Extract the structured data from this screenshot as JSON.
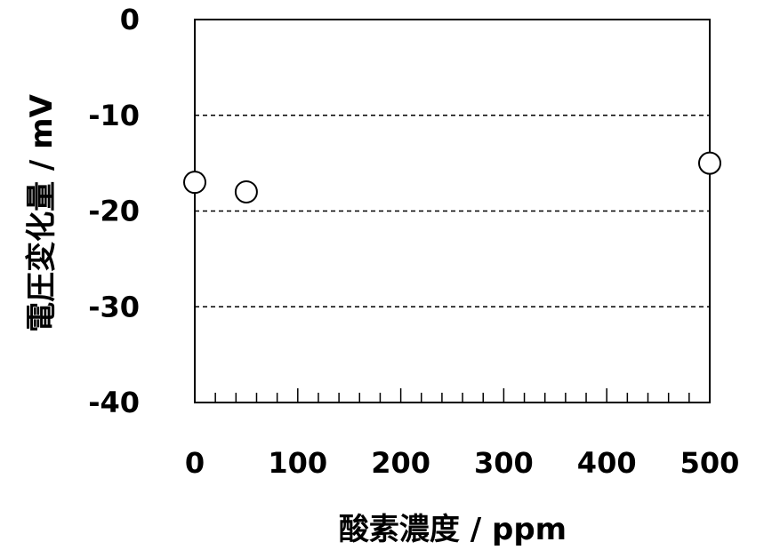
{
  "chart_data": {
    "type": "scatter",
    "xlabel": "酸素濃度 / ppm",
    "ylabel": "電圧変化量 / mV",
    "xlim": [
      0,
      500
    ],
    "ylim": [
      -40,
      0
    ],
    "x_ticks": [
      0,
      100,
      200,
      300,
      400,
      500
    ],
    "x_tick_labels": [
      "0",
      "100",
      "200",
      "300",
      "400",
      "500"
    ],
    "y_ticks": [
      0,
      -10,
      -20,
      -30,
      -40
    ],
    "y_tick_labels": [
      "0",
      "-10",
      "-20",
      "-30",
      "-40"
    ],
    "x_minor_step": 20,
    "gridlines_y": [
      -10,
      -20,
      -30
    ],
    "grid_style": "dashed",
    "marker": "open-circle",
    "series": [
      {
        "x": [
          0,
          50,
          500
        ],
        "y": [
          -17,
          -18,
          -15
        ]
      }
    ]
  }
}
